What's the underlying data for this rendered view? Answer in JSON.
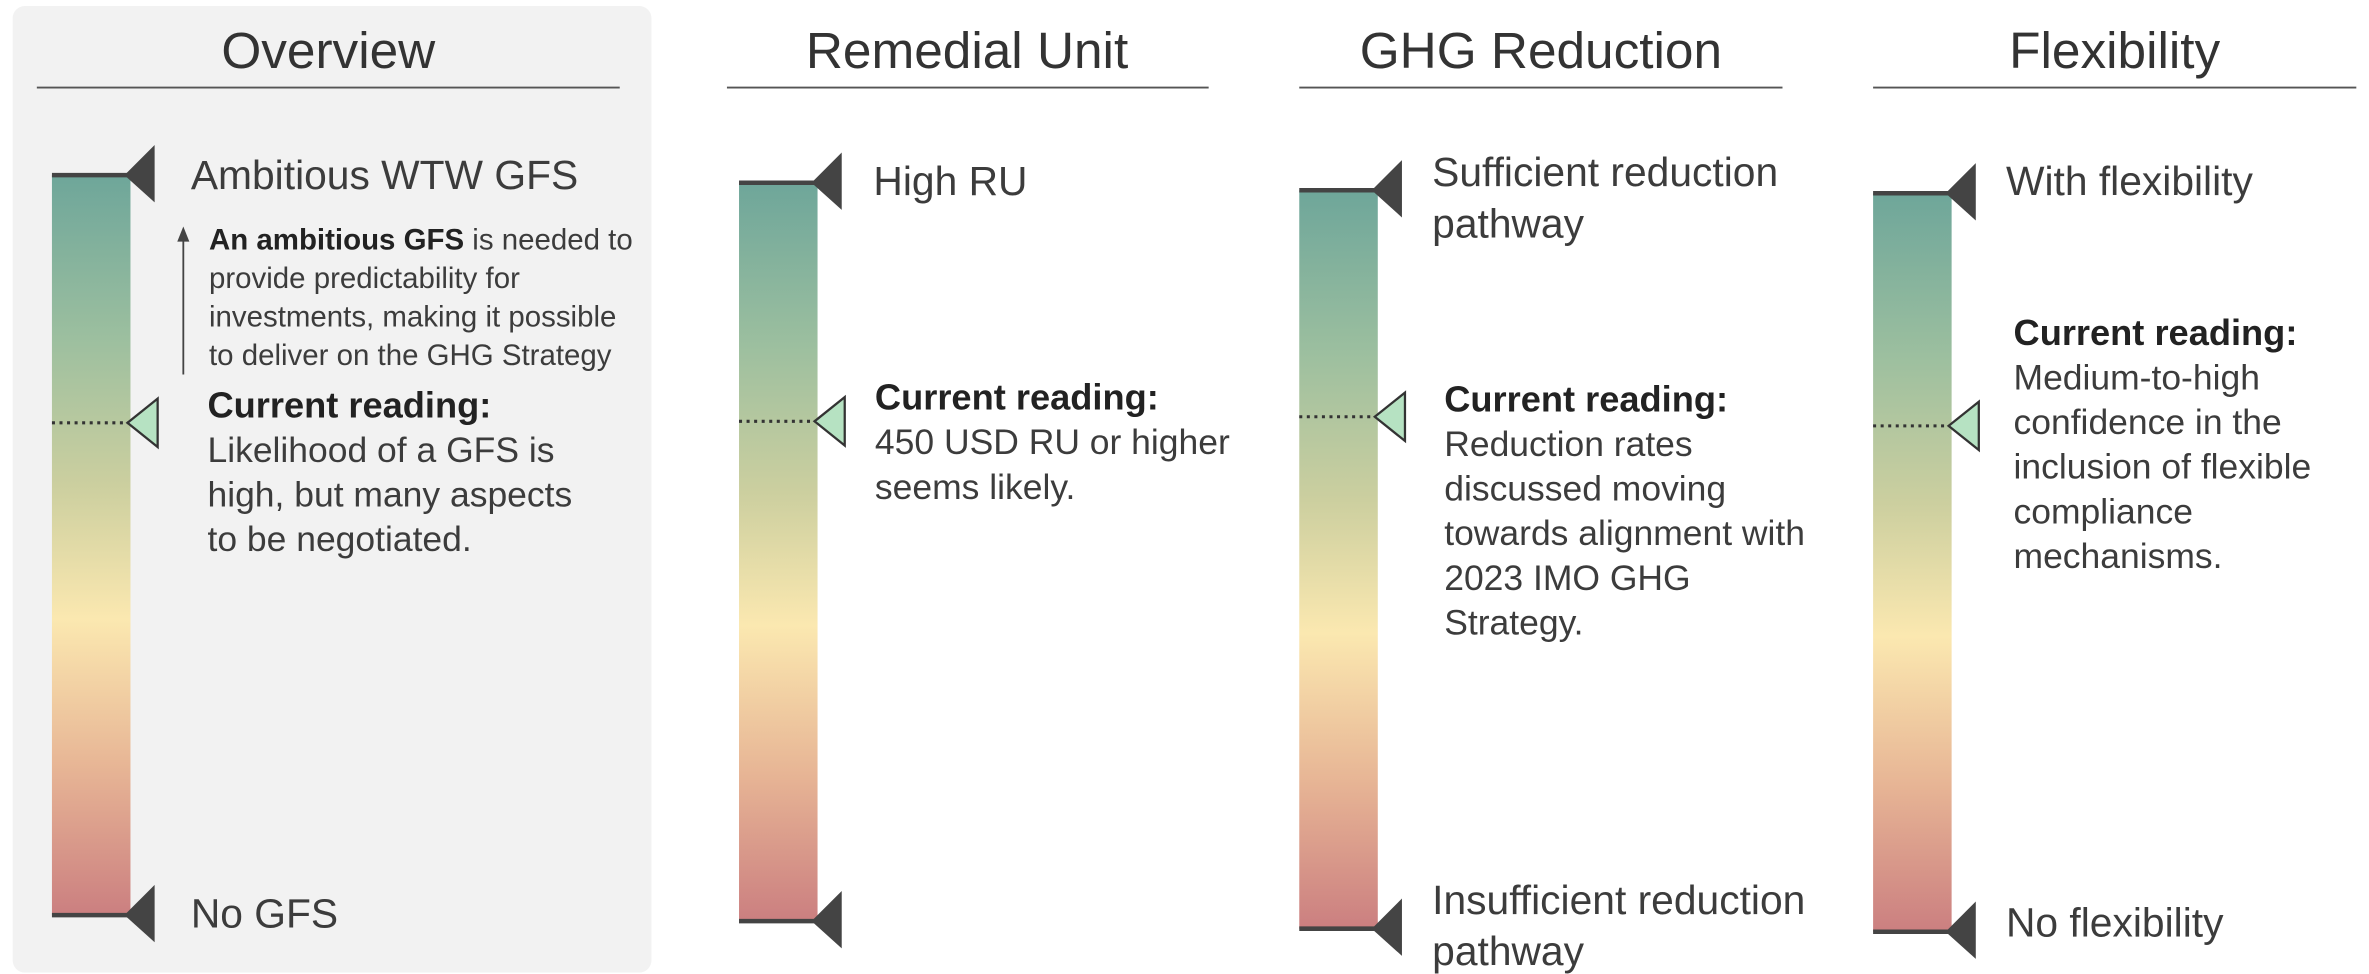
{
  "panels": [
    {
      "title": "Overview",
      "top_label": [
        "Ambitious WTW GFS"
      ],
      "bottom_label": [
        "No GFS"
      ],
      "note": {
        "bold": "An ambitious GFS",
        "lines": [
          " is needed to",
          "provide predictability for",
          "investments, making it possible",
          "to deliver on the GHG Strategy"
        ]
      },
      "reading": {
        "heading": "Current reading:",
        "lines": [
          "Likelihood of a GFS is",
          "high, but many aspects",
          "to be negotiated."
        ]
      }
    },
    {
      "title": "Remedial Unit",
      "top_label": [
        "High RU"
      ],
      "reading": {
        "heading": "Current reading:",
        "lines": [
          "450 USD RU or higher",
          "seems likely."
        ]
      }
    },
    {
      "title": "GHG Reduction",
      "top_label": [
        "Sufficient reduction",
        "pathway"
      ],
      "bottom_label": [
        "Insufficient reduction",
        "pathway"
      ],
      "reading": {
        "heading": "Current reading:",
        "lines": [
          "Reduction rates",
          "discussed moving",
          "towards alignment with",
          "2023 IMO GHG",
          "Strategy."
        ]
      }
    },
    {
      "title": "Flexibility",
      "top_label": [
        "With flexibility"
      ],
      "bottom_label": [
        "No flexibility"
      ],
      "reading": {
        "heading": "Current reading:",
        "lines": [
          "Medium-to-high",
          "confidence in the",
          "inclusion of flexible",
          "compliance",
          "mechanisms."
        ]
      }
    }
  ]
}
